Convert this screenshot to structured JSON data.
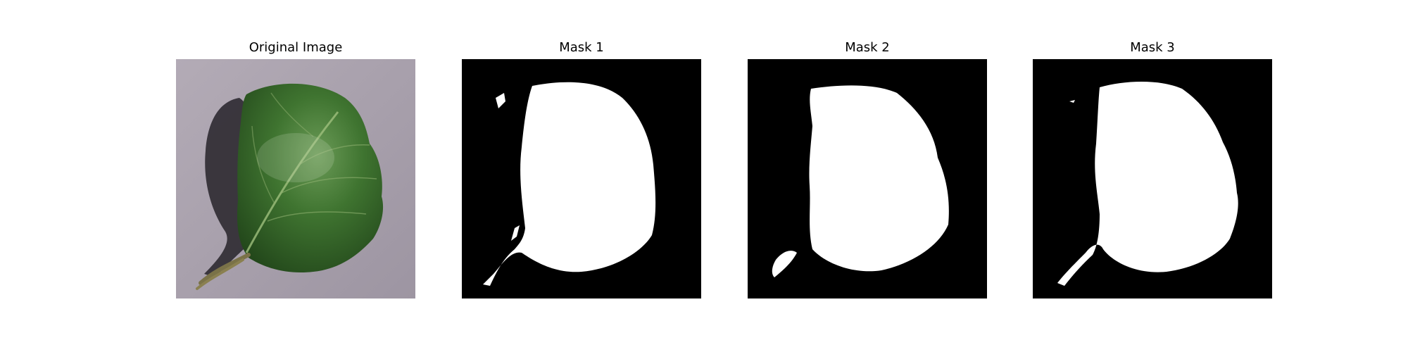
{
  "figure": {
    "panels": [
      {
        "title": "Original Image",
        "kind": "photo"
      },
      {
        "title": "Mask 1",
        "kind": "mask"
      },
      {
        "title": "Mask 2",
        "kind": "mask"
      },
      {
        "title": "Mask 3",
        "kind": "mask"
      }
    ]
  },
  "colors": {
    "background": "#ffffff",
    "photo_backdrop": "#a59ea8",
    "leaf_dark": "#2b5a22",
    "leaf_light": "#4f8a3c",
    "mask_background": "#000000",
    "mask_foreground": "#ffffff"
  }
}
